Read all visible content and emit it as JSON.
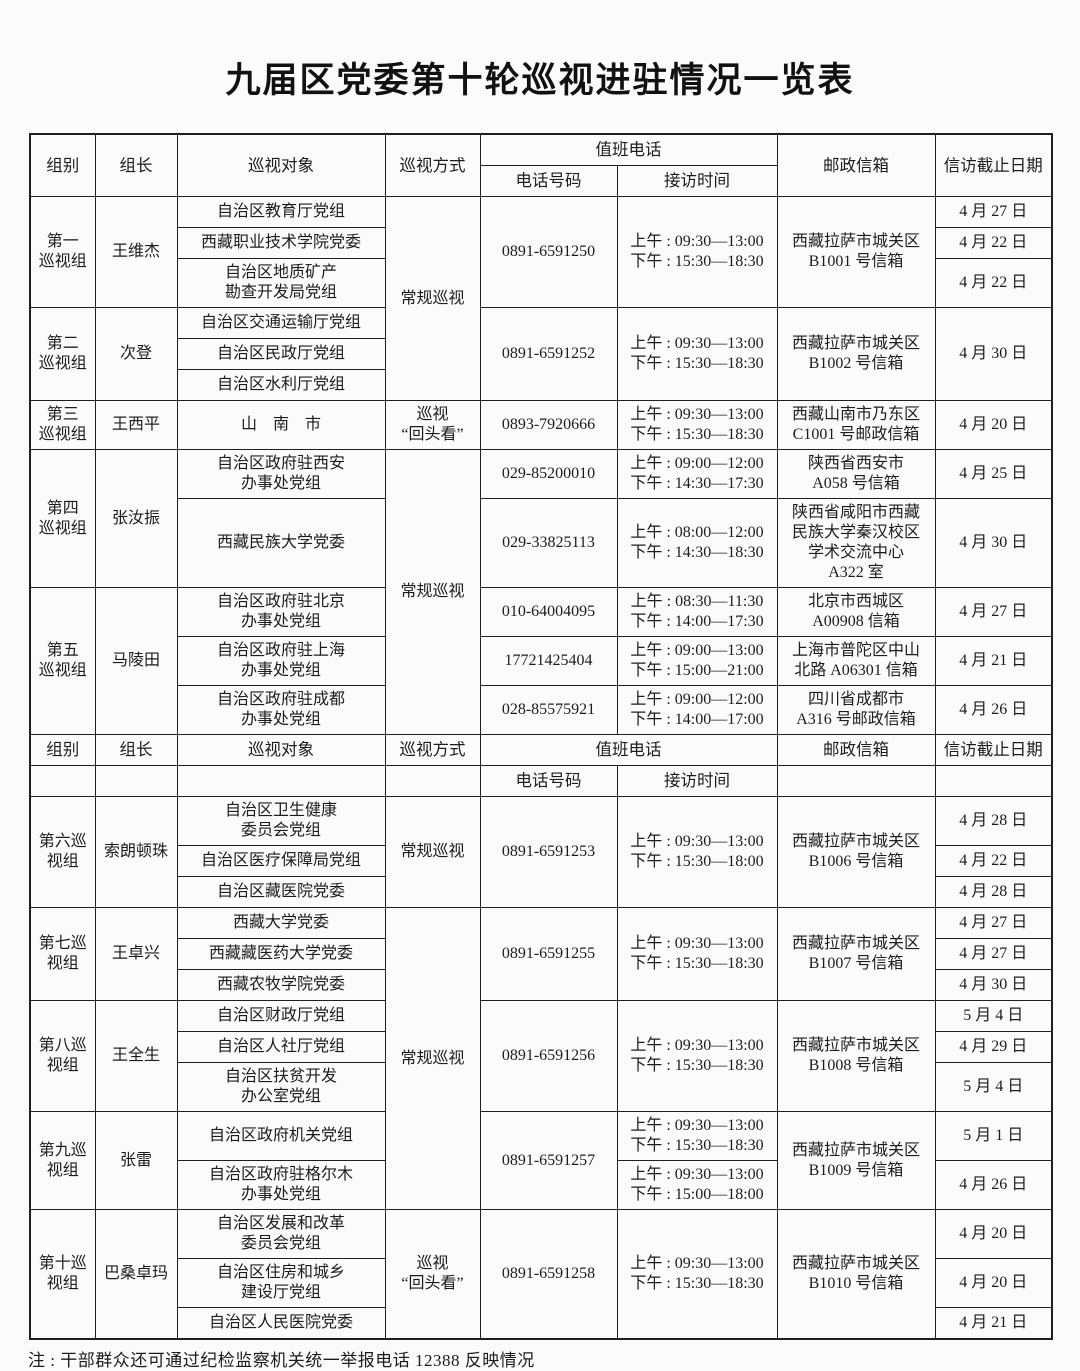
{
  "page": {
    "title": "九届区党委第十轮巡视进驻情况一览表",
    "footnote": "注 : 干部群众还可通过纪检监察机关统一举报电话 12388 反映情况"
  },
  "table": {
    "rows": [
      {
        "type": "header",
        "cells": [
          {
            "name": "header-group",
            "text": "组别",
            "rowspan": 2
          },
          {
            "name": "header-leader",
            "text": "组长",
            "rowspan": 2
          },
          {
            "name": "header-target",
            "text": "巡视对象",
            "rowspan": 2
          },
          {
            "name": "header-method",
            "text": "巡视方式",
            "rowspan": 2
          },
          {
            "name": "header-duty-phone",
            "text": "值班电话",
            "colspan": 2
          },
          {
            "name": "header-mailbox",
            "text": "邮政信箱",
            "rowspan": 2
          },
          {
            "name": "header-deadline",
            "text": "信访截止日期",
            "rowspan": 2
          }
        ]
      },
      {
        "type": "header",
        "cells": [
          {
            "name": "header-phone",
            "text": "电话号码"
          },
          {
            "name": "header-time",
            "text": "接访时间"
          }
        ]
      },
      {
        "cells": [
          {
            "name": "group-cell",
            "text": "第一\n巡视组",
            "rowspan": 3
          },
          {
            "name": "leader-cell",
            "text": "王维杰",
            "rowspan": 3
          },
          {
            "name": "target-cell",
            "text": "自治区教育厅党组"
          },
          {
            "name": "method-cell",
            "text": "常规巡视",
            "rowspan": 6
          },
          {
            "name": "phone-cell",
            "text": "0891-6591250",
            "rowspan": 3
          },
          {
            "name": "time-cell",
            "text": "上午 : 09:30—13:00\n下午 : 15:30—18:30",
            "rowspan": 3
          },
          {
            "name": "mailbox-cell",
            "text": "西藏拉萨市城关区\nB1001 号信箱",
            "rowspan": 3
          },
          {
            "name": "deadline-cell",
            "text": "4 月 27 日"
          }
        ]
      },
      {
        "cells": [
          {
            "name": "target-cell",
            "text": "西藏职业技术学院党委"
          },
          {
            "name": "deadline-cell",
            "text": "4 月 22 日"
          }
        ]
      },
      {
        "cells": [
          {
            "name": "target-cell",
            "text": "自治区地质矿产\n勘查开发局党组"
          },
          {
            "name": "deadline-cell",
            "text": "4 月 22 日"
          }
        ]
      },
      {
        "cells": [
          {
            "name": "group-cell",
            "text": "第二\n巡视组",
            "rowspan": 3
          },
          {
            "name": "leader-cell",
            "text": "次登",
            "rowspan": 3
          },
          {
            "name": "target-cell",
            "text": "自治区交通运输厅党组"
          },
          {
            "name": "phone-cell",
            "text": "0891-6591252",
            "rowspan": 3
          },
          {
            "name": "time-cell",
            "text": "上午 : 09:30—13:00\n下午 : 15:30—18:30",
            "rowspan": 3
          },
          {
            "name": "mailbox-cell",
            "text": "西藏拉萨市城关区\nB1002 号信箱",
            "rowspan": 3
          },
          {
            "name": "deadline-cell",
            "text": "4 月 30 日",
            "rowspan": 3
          }
        ]
      },
      {
        "cells": [
          {
            "name": "target-cell",
            "text": "自治区民政厅党组"
          }
        ]
      },
      {
        "cells": [
          {
            "name": "target-cell",
            "text": "自治区水利厅党组"
          }
        ]
      },
      {
        "cells": [
          {
            "name": "group-cell",
            "text": "第三\n巡视组"
          },
          {
            "name": "leader-cell",
            "text": "王西平"
          },
          {
            "name": "target-cell",
            "text": "山　南　市"
          },
          {
            "name": "method-cell",
            "text": "巡视\n“回头看”"
          },
          {
            "name": "phone-cell",
            "text": "0893-7920666"
          },
          {
            "name": "time-cell",
            "text": "上午 : 09:30—13:00\n下午 : 15:30—18:30"
          },
          {
            "name": "mailbox-cell",
            "text": "西藏山南市乃东区\nC1001 号邮政信箱"
          },
          {
            "name": "deadline-cell",
            "text": "4 月 20 日"
          }
        ]
      },
      {
        "cells": [
          {
            "name": "group-cell",
            "text": "第四\n巡视组",
            "rowspan": 2
          },
          {
            "name": "leader-cell",
            "text": "张汝振",
            "rowspan": 2
          },
          {
            "name": "target-cell",
            "text": "自治区政府驻西安\n办事处党组"
          },
          {
            "name": "method-cell",
            "text": "常规巡视",
            "rowspan": 5
          },
          {
            "name": "phone-cell",
            "text": "029-85200010"
          },
          {
            "name": "time-cell",
            "text": "上午 : 09:00—12:00\n下午 : 14:30—17:30"
          },
          {
            "name": "mailbox-cell",
            "text": "陕西省西安市\nA058 号信箱"
          },
          {
            "name": "deadline-cell",
            "text": "4 月 25 日"
          }
        ]
      },
      {
        "cells": [
          {
            "name": "target-cell",
            "text": "西藏民族大学党委"
          },
          {
            "name": "phone-cell",
            "text": "029-33825113"
          },
          {
            "name": "time-cell",
            "text": "上午 : 08:00—12:00\n下午 : 14:30—18:30"
          },
          {
            "name": "mailbox-cell",
            "text": "陕西省咸阳市西藏\n民族大学秦汉校区\n学术交流中心\nA322 室"
          },
          {
            "name": "deadline-cell",
            "text": "4 月 30 日"
          }
        ]
      },
      {
        "cells": [
          {
            "name": "group-cell",
            "text": "第五\n巡视组",
            "rowspan": 3
          },
          {
            "name": "leader-cell",
            "text": "马陵田",
            "rowspan": 3
          },
          {
            "name": "target-cell",
            "text": "自治区政府驻北京\n办事处党组"
          },
          {
            "name": "phone-cell",
            "text": "010-64004095"
          },
          {
            "name": "time-cell",
            "text": "上午 : 08:30—11:30\n下午 : 14:00—17:30"
          },
          {
            "name": "mailbox-cell",
            "text": "北京市西城区\nA00908 信箱"
          },
          {
            "name": "deadline-cell",
            "text": "4 月 27 日"
          }
        ]
      },
      {
        "cells": [
          {
            "name": "target-cell",
            "text": "自治区政府驻上海\n办事处党组"
          },
          {
            "name": "phone-cell",
            "text": "17721425404"
          },
          {
            "name": "time-cell",
            "text": "上午 : 09:00—13:00\n下午 : 15:00—21:00"
          },
          {
            "name": "mailbox-cell",
            "text": "上海市普陀区中山\n北路 A06301 信箱"
          },
          {
            "name": "deadline-cell",
            "text": "4 月 21 日"
          }
        ]
      },
      {
        "cells": [
          {
            "name": "target-cell",
            "text": "自治区政府驻成都\n办事处党组"
          },
          {
            "name": "phone-cell",
            "text": "028-85575921"
          },
          {
            "name": "time-cell",
            "text": "上午 : 09:00—12:00\n下午 : 14:00—17:00"
          },
          {
            "name": "mailbox-cell",
            "text": "四川省成都市\nA316 号邮政信箱"
          },
          {
            "name": "deadline-cell",
            "text": "4 月 26 日"
          }
        ]
      },
      {
        "type": "header",
        "cells": [
          {
            "name": "header-group",
            "text": "组别"
          },
          {
            "name": "header-leader",
            "text": "组长"
          },
          {
            "name": "header-target",
            "text": "巡视对象"
          },
          {
            "name": "header-method",
            "text": "巡视方式"
          },
          {
            "name": "header-duty-phone",
            "text": "值班电话",
            "colspan": 2
          },
          {
            "name": "header-mailbox",
            "text": "邮政信箱"
          },
          {
            "name": "header-deadline",
            "text": "信访截止日期"
          }
        ]
      },
      {
        "type": "header",
        "cells": [
          {
            "name": "empty-cell",
            "text": ""
          },
          {
            "name": "empty-cell",
            "text": ""
          },
          {
            "name": "empty-cell",
            "text": ""
          },
          {
            "name": "empty-cell",
            "text": ""
          },
          {
            "name": "header-phone",
            "text": "电话号码"
          },
          {
            "name": "header-time",
            "text": "接访时间"
          },
          {
            "name": "empty-cell",
            "text": ""
          },
          {
            "name": "empty-cell",
            "text": ""
          }
        ]
      },
      {
        "cells": [
          {
            "name": "group-cell",
            "text": "第六巡\n视组",
            "rowspan": 3
          },
          {
            "name": "leader-cell",
            "text": "索朗顿珠",
            "rowspan": 3
          },
          {
            "name": "target-cell",
            "text": "自治区卫生健康\n委员会党组"
          },
          {
            "name": "method-cell",
            "text": "常规巡视",
            "rowspan": 3
          },
          {
            "name": "phone-cell",
            "text": "0891-6591253",
            "rowspan": 3
          },
          {
            "name": "time-cell",
            "text": "上午 : 09:30—13:00\n下午 : 15:30—18:00",
            "rowspan": 3
          },
          {
            "name": "mailbox-cell",
            "text": "西藏拉萨市城关区\nB1006 号信箱",
            "rowspan": 3
          },
          {
            "name": "deadline-cell",
            "text": "4 月 28 日"
          }
        ]
      },
      {
        "cells": [
          {
            "name": "target-cell",
            "text": "自治区医疗保障局党组"
          },
          {
            "name": "deadline-cell",
            "text": "4 月 22 日"
          }
        ]
      },
      {
        "cells": [
          {
            "name": "target-cell",
            "text": "自治区藏医院党委"
          },
          {
            "name": "deadline-cell",
            "text": "4 月 28 日"
          }
        ]
      },
      {
        "cells": [
          {
            "name": "group-cell",
            "text": "第七巡\n视组",
            "rowspan": 3
          },
          {
            "name": "leader-cell",
            "text": "王卓兴",
            "rowspan": 3
          },
          {
            "name": "target-cell",
            "text": "西藏大学党委"
          },
          {
            "name": "method-cell",
            "text": "常规巡视",
            "rowspan": 8
          },
          {
            "name": "phone-cell",
            "text": "0891-6591255",
            "rowspan": 3
          },
          {
            "name": "time-cell",
            "text": "上午 : 09:30—13:00\n下午 : 15:30—18:30",
            "rowspan": 3
          },
          {
            "name": "mailbox-cell",
            "text": "西藏拉萨市城关区\nB1007 号信箱",
            "rowspan": 3
          },
          {
            "name": "deadline-cell",
            "text": "4 月 27 日"
          }
        ]
      },
      {
        "cells": [
          {
            "name": "target-cell",
            "text": "西藏藏医药大学党委"
          },
          {
            "name": "deadline-cell",
            "text": "4 月 27 日"
          }
        ]
      },
      {
        "cells": [
          {
            "name": "target-cell",
            "text": "西藏农牧学院党委"
          },
          {
            "name": "deadline-cell",
            "text": "4 月 30 日"
          }
        ]
      },
      {
        "cells": [
          {
            "name": "group-cell",
            "text": "第八巡\n视组",
            "rowspan": 3
          },
          {
            "name": "leader-cell",
            "text": "王全生",
            "rowspan": 3
          },
          {
            "name": "target-cell",
            "text": "自治区财政厅党组"
          },
          {
            "name": "phone-cell",
            "text": "0891-6591256",
            "rowspan": 3
          },
          {
            "name": "time-cell",
            "text": "上午 : 09:30—13:00\n下午 : 15:30—18:30",
            "rowspan": 3
          },
          {
            "name": "mailbox-cell",
            "text": "西藏拉萨市城关区\nB1008 号信箱",
            "rowspan": 3
          },
          {
            "name": "deadline-cell",
            "text": "5 月 4 日"
          }
        ]
      },
      {
        "cells": [
          {
            "name": "target-cell",
            "text": "自治区人社厅党组"
          },
          {
            "name": "deadline-cell",
            "text": "4 月 29 日"
          }
        ]
      },
      {
        "cells": [
          {
            "name": "target-cell",
            "text": "自治区扶贫开发\n办公室党组"
          },
          {
            "name": "deadline-cell",
            "text": "5 月 4 日"
          }
        ]
      },
      {
        "cells": [
          {
            "name": "group-cell",
            "text": "第九巡\n视组",
            "rowspan": 2
          },
          {
            "name": "leader-cell",
            "text": "张雷",
            "rowspan": 2
          },
          {
            "name": "target-cell",
            "text": "自治区政府机关党组"
          },
          {
            "name": "phone-cell",
            "text": "0891-6591257",
            "rowspan": 2
          },
          {
            "name": "time-cell",
            "text": "上午 : 09:30—13:00\n下午 : 15:30—18:30"
          },
          {
            "name": "mailbox-cell",
            "text": "西藏拉萨市城关区\nB1009 号信箱",
            "rowspan": 2
          },
          {
            "name": "deadline-cell",
            "text": "5 月 1 日"
          }
        ]
      },
      {
        "cells": [
          {
            "name": "target-cell",
            "text": "自治区政府驻格尔木\n办事处党组"
          },
          {
            "name": "time-cell",
            "text": "上午 : 09:30—13:00\n下午 : 15:00—18:00"
          },
          {
            "name": "deadline-cell",
            "text": "4 月 26 日"
          }
        ]
      },
      {
        "cells": [
          {
            "name": "group-cell",
            "text": "第十巡\n视组",
            "rowspan": 3
          },
          {
            "name": "leader-cell",
            "text": "巴桑卓玛",
            "rowspan": 3
          },
          {
            "name": "target-cell",
            "text": "自治区发展和改革\n委员会党组"
          },
          {
            "name": "method-cell",
            "text": "巡视\n“回头看”",
            "rowspan": 3
          },
          {
            "name": "phone-cell",
            "text": "0891-6591258",
            "rowspan": 3
          },
          {
            "name": "time-cell",
            "text": "上午 : 09:30—13:00\n下午 : 15:30—18:30",
            "rowspan": 3
          },
          {
            "name": "mailbox-cell",
            "text": "西藏拉萨市城关区\nB1010 号信箱",
            "rowspan": 3
          },
          {
            "name": "deadline-cell",
            "text": "4 月 20 日"
          }
        ]
      },
      {
        "cells": [
          {
            "name": "target-cell",
            "text": "自治区住房和城乡\n建设厅党组"
          },
          {
            "name": "deadline-cell",
            "text": "4 月 20 日"
          }
        ]
      },
      {
        "cells": [
          {
            "name": "target-cell",
            "text": "自治区人民医院党委"
          },
          {
            "name": "deadline-cell",
            "text": "4 月 21 日"
          }
        ]
      }
    ]
  }
}
